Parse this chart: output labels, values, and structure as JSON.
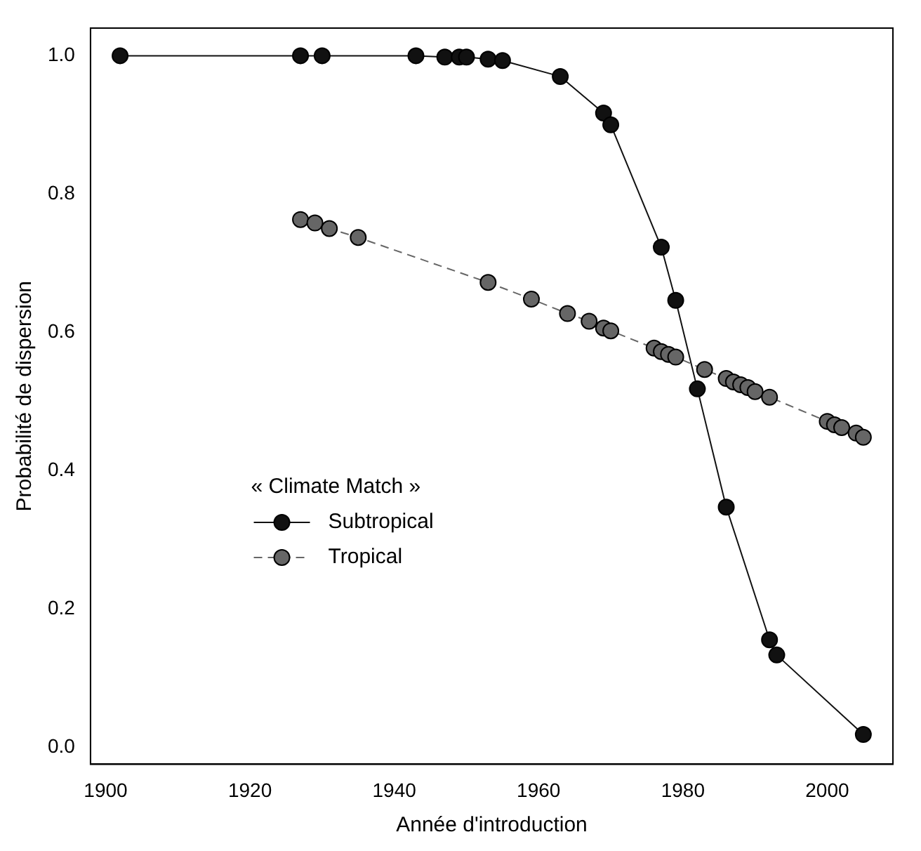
{
  "chart_data": {
    "type": "line",
    "xlabel": "Année d'introduction",
    "ylabel": "Probabilité de dispersion",
    "legend_title": "« Climate Match »",
    "legend": "left",
    "marker": "circle",
    "grid": false,
    "xlim": [
      1897.9,
      2009.1
    ],
    "xticks": [
      1900,
      1920,
      1940,
      1960,
      1980,
      2000
    ],
    "ylim": [
      -0.025,
      1.04
    ],
    "yticks": [
      {
        "value": 0,
        "label": "0.0"
      },
      0.2,
      0.4,
      0.6,
      0.8,
      {
        "value": 1,
        "label": "1.0"
      }
    ],
    "series": [
      {
        "name": "Subtropical",
        "color": "#111111",
        "line_style": "solid",
        "x": [
          1902,
          1927,
          1930,
          1943,
          1947,
          1949,
          1950,
          1953,
          1955,
          1963,
          1969,
          1970,
          1977,
          1979,
          1982,
          1986,
          1992,
          1993,
          2005
        ],
        "values": [
          1.0,
          1.0,
          1.0,
          1.0,
          0.998,
          0.998,
          0.998,
          0.995,
          0.993,
          0.97,
          0.917,
          0.9,
          0.723,
          0.646,
          0.518,
          0.347,
          0.155,
          0.133,
          0.018
        ]
      },
      {
        "name": "Tropical",
        "color": "#666666",
        "line_style": "dashed",
        "x": [
          1927,
          1929,
          1931,
          1935,
          1953,
          1959,
          1964,
          1967,
          1969,
          1970,
          1976,
          1977,
          1978,
          1979,
          1983,
          1986,
          1987,
          1988,
          1989,
          1990,
          1992,
          2000,
          2001,
          2002,
          2004,
          2005
        ],
        "values": [
          0.763,
          0.758,
          0.75,
          0.737,
          0.672,
          0.648,
          0.627,
          0.616,
          0.606,
          0.602,
          0.577,
          0.572,
          0.568,
          0.564,
          0.546,
          0.533,
          0.528,
          0.524,
          0.52,
          0.514,
          0.506,
          0.471,
          0.466,
          0.462,
          0.454,
          0.448
        ]
      }
    ]
  }
}
